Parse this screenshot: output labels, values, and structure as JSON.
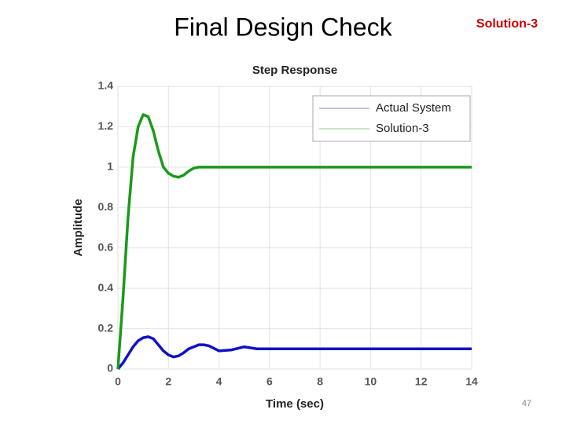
{
  "slide": {
    "title": "Final Design Check",
    "tag": "Solution-3",
    "page": "47"
  },
  "chart_data": {
    "type": "line",
    "title": "Step Response",
    "xlabel": "Time (sec)",
    "ylabel": "Amplitude",
    "x": [
      0,
      0.2,
      0.4,
      0.6,
      0.8,
      1.0,
      1.2,
      1.4,
      1.6,
      1.8,
      2.0,
      2.2,
      2.4,
      2.6,
      2.8,
      3.0,
      3.2,
      3.4,
      3.6,
      4,
      4.5,
      5,
      5.5,
      6,
      8,
      10,
      12,
      14
    ],
    "series": [
      {
        "name": "Actual System",
        "color": "#1010c8",
        "values": [
          0,
          0.03,
          0.07,
          0.11,
          0.14,
          0.155,
          0.16,
          0.15,
          0.12,
          0.09,
          0.07,
          0.06,
          0.065,
          0.08,
          0.1,
          0.11,
          0.12,
          0.12,
          0.115,
          0.09,
          0.095,
          0.11,
          0.1,
          0.1,
          0.1,
          0.1,
          0.1,
          0.1
        ]
      },
      {
        "name": "Solution-3",
        "color": "#1a9a1a",
        "values": [
          0,
          0.35,
          0.75,
          1.05,
          1.2,
          1.26,
          1.25,
          1.18,
          1.08,
          1.0,
          0.97,
          0.955,
          0.95,
          0.96,
          0.98,
          0.995,
          1.0,
          1.0,
          1.0,
          1.0,
          1.0,
          1.0,
          1.0,
          1.0,
          1.0,
          1.0,
          1.0,
          1.0
        ]
      }
    ],
    "xlim": [
      0,
      14
    ],
    "xticks": [
      0,
      2,
      4,
      6,
      8,
      10,
      12,
      14
    ],
    "ylim": [
      0,
      1.4
    ],
    "yticks": [
      0,
      0.2,
      0.4,
      0.6,
      0.8,
      1,
      1.2,
      1.4
    ],
    "grid": true,
    "legend": "upper right"
  }
}
